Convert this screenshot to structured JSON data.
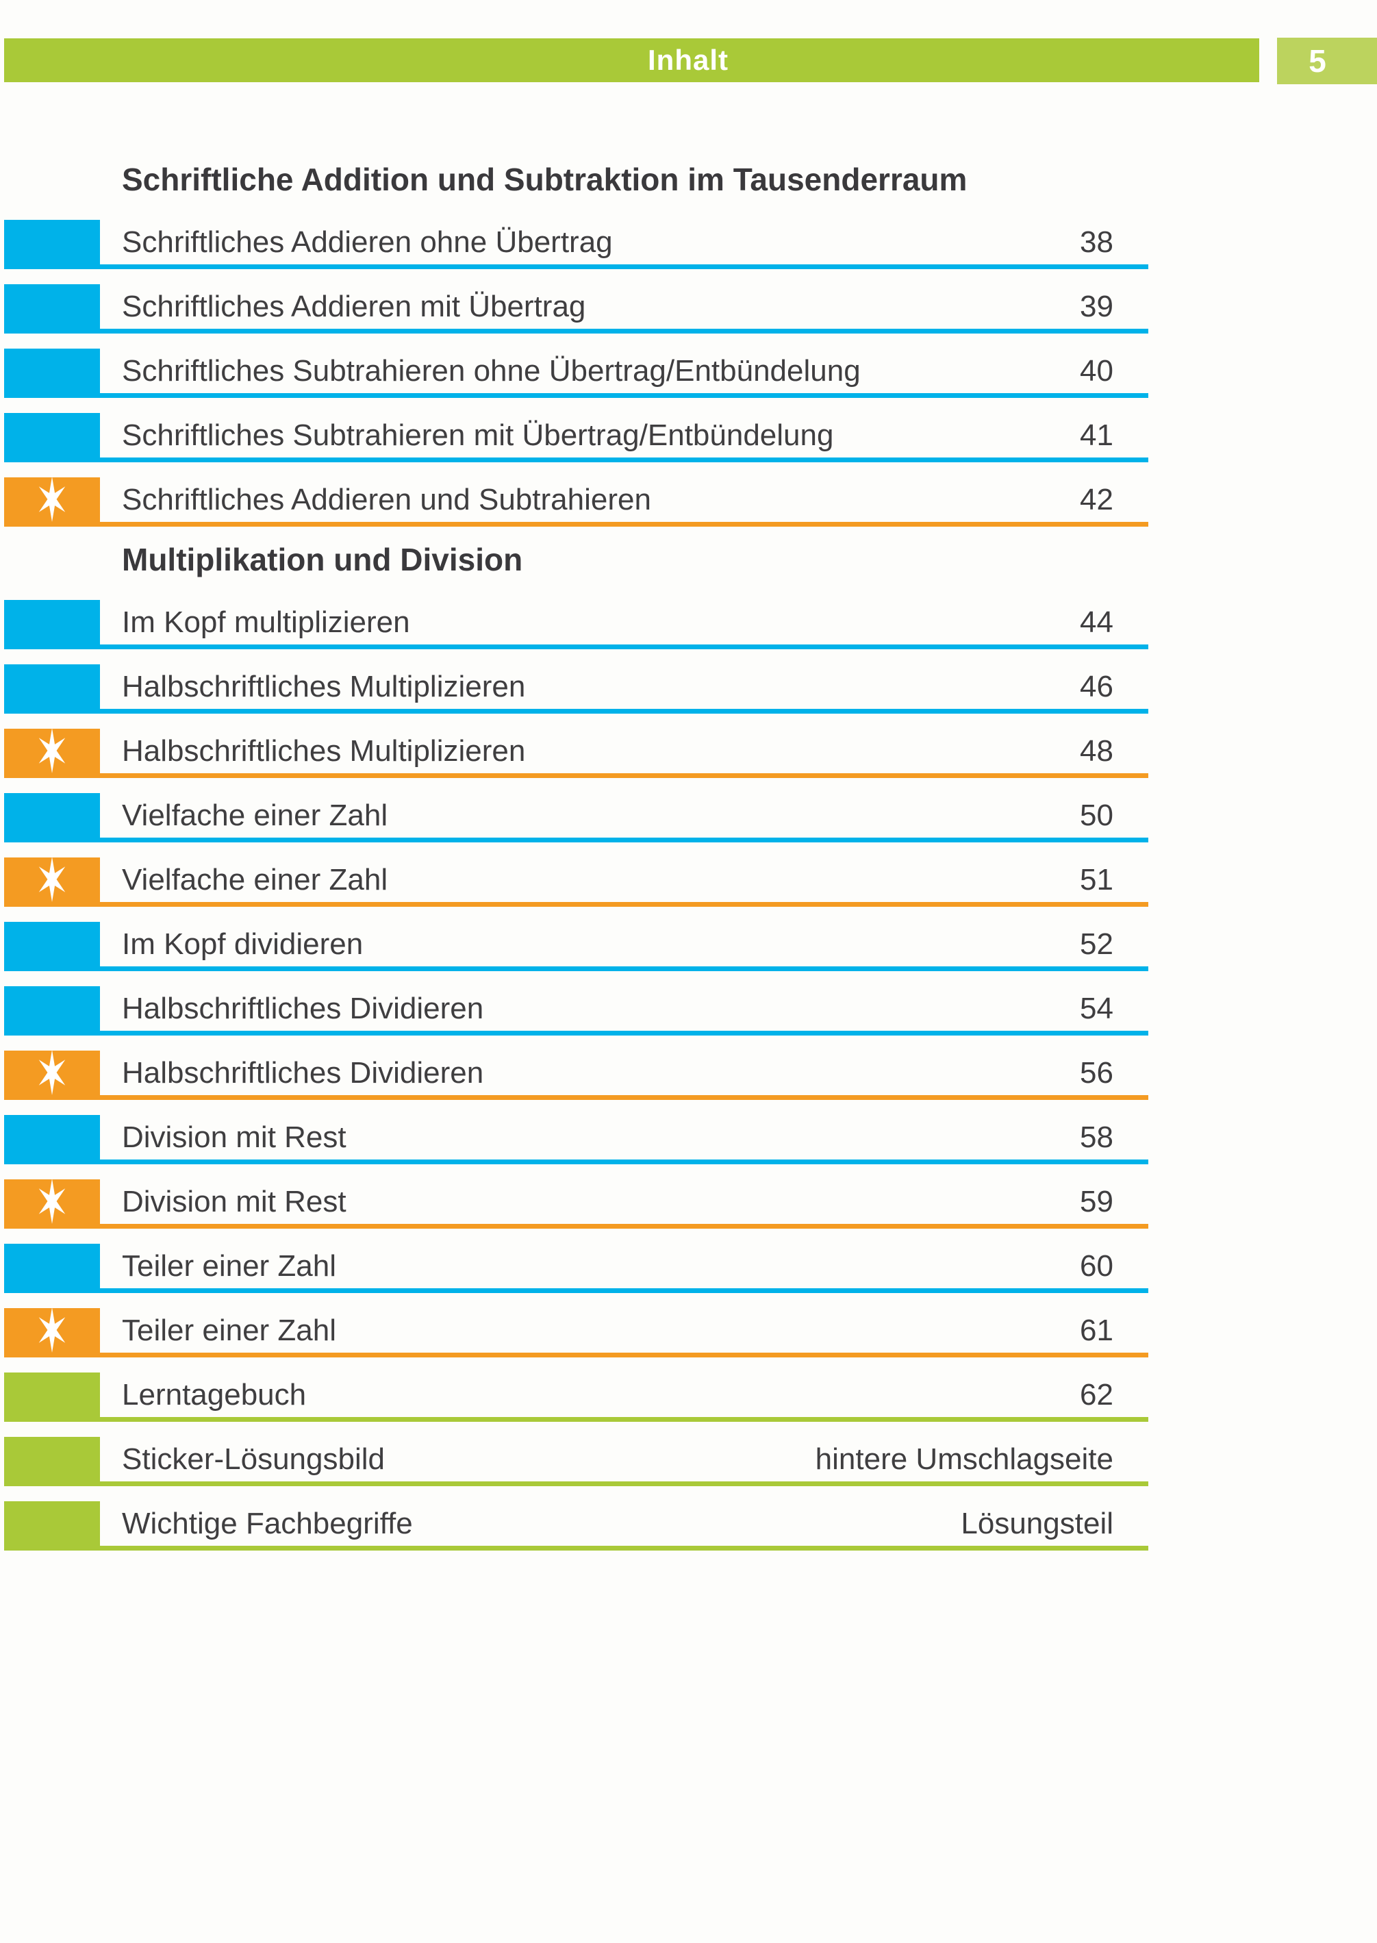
{
  "header": {
    "title": "Inhalt",
    "page_number": "5"
  },
  "colors": {
    "blue": "#00b2e9",
    "orange": "#f49b22",
    "green": "#a9c938",
    "green_light": "#bcd35e",
    "text": "#3f3e40",
    "white": "#ffffff"
  },
  "icons": {
    "star": "star-icon"
  },
  "sections": [
    {
      "heading": "Schriftliche Addition und Subtraktion im Tausenderraum",
      "items": [
        {
          "label": "Schriftliches Addieren ohne Übertrag",
          "page": "38",
          "type": "blue"
        },
        {
          "label": "Schriftliches Addieren mit Übertrag",
          "page": "39",
          "type": "blue"
        },
        {
          "label": "Schriftliches Subtrahieren ohne Übertrag/Entbündelung",
          "page": "40",
          "type": "blue"
        },
        {
          "label": "Schriftliches Subtrahieren mit Übertrag/Entbündelung",
          "page": "41",
          "type": "blue"
        },
        {
          "label": "Schriftliches Addieren und Subtrahieren",
          "page": "42",
          "type": "orange-star"
        }
      ]
    },
    {
      "heading": "Multiplikation und Division",
      "items": [
        {
          "label": "Im Kopf multiplizieren",
          "page": "44",
          "type": "blue"
        },
        {
          "label": "Halbschriftliches Multiplizieren",
          "page": "46",
          "type": "blue"
        },
        {
          "label": "Halbschriftliches Multiplizieren",
          "page": "48",
          "type": "orange-star"
        },
        {
          "label": "Vielfache einer Zahl",
          "page": "50",
          "type": "blue"
        },
        {
          "label": "Vielfache einer Zahl",
          "page": "51",
          "type": "orange-star"
        },
        {
          "label": "Im Kopf dividieren",
          "page": "52",
          "type": "blue"
        },
        {
          "label": "Halbschriftliches Dividieren",
          "page": "54",
          "type": "blue"
        },
        {
          "label": "Halbschriftliches Dividieren",
          "page": "56",
          "type": "orange-star"
        },
        {
          "label": "Division mit Rest",
          "page": "58",
          "type": "blue"
        },
        {
          "label": "Division mit Rest",
          "page": "59",
          "type": "orange-star"
        },
        {
          "label": "Teiler einer Zahl",
          "page": "60",
          "type": "blue"
        },
        {
          "label": "Teiler einer Zahl",
          "page": "61",
          "type": "orange-star"
        }
      ]
    },
    {
      "heading": "",
      "items": [
        {
          "label": "Lerntagebuch",
          "page": "62",
          "type": "green"
        },
        {
          "label": "Sticker-Lösungsbild",
          "page": "hintere Umschlagseite",
          "type": "green"
        },
        {
          "label": "Wichtige Fachbegriffe",
          "page": "Lösungsteil",
          "type": "green"
        }
      ]
    }
  ]
}
